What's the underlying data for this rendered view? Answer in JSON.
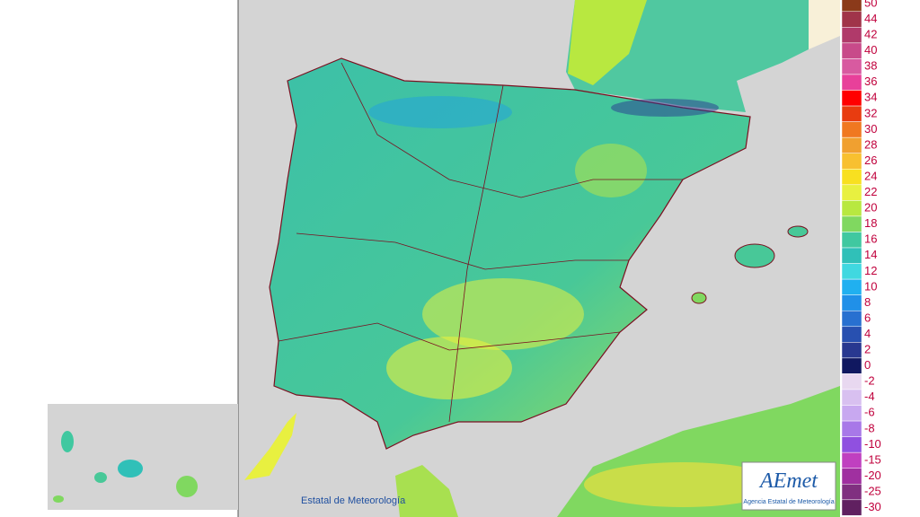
{
  "legend": {
    "labels": [
      "50",
      "44",
      "42",
      "40",
      "38",
      "36",
      "34",
      "32",
      "30",
      "28",
      "26",
      "24",
      "22",
      "20",
      "18",
      "16",
      "14",
      "12",
      "10",
      "8",
      "6",
      "4",
      "2",
      "0",
      "-2",
      "-4",
      "-6",
      "-8",
      "-10",
      "-15",
      "-20",
      "-25",
      "-30"
    ],
    "colors": [
      "#8b3a1a",
      "#a0344a",
      "#b03a6a",
      "#c84a8a",
      "#d85aa0",
      "#e8409a",
      "#ff0000",
      "#e83c10",
      "#f07820",
      "#f0a030",
      "#f8c030",
      "#f8e020",
      "#e8f040",
      "#b8e840",
      "#80d860",
      "#40c8a0",
      "#30c0b8",
      "#40d8e0",
      "#20b0f0",
      "#2090e8",
      "#2870d0",
      "#2850b0",
      "#283890",
      "#101860",
      "#e8d8f0",
      "#d8c0f0",
      "#c8a8f0",
      "#a878e8",
      "#9050e0",
      "#c040c0",
      "#a030a0",
      "#803080",
      "#602060"
    ]
  },
  "credit": "Estatal de Meteorología",
  "logo": {
    "name": "AEmet",
    "subtitle": "Agencia Estatal de Meteorología"
  }
}
